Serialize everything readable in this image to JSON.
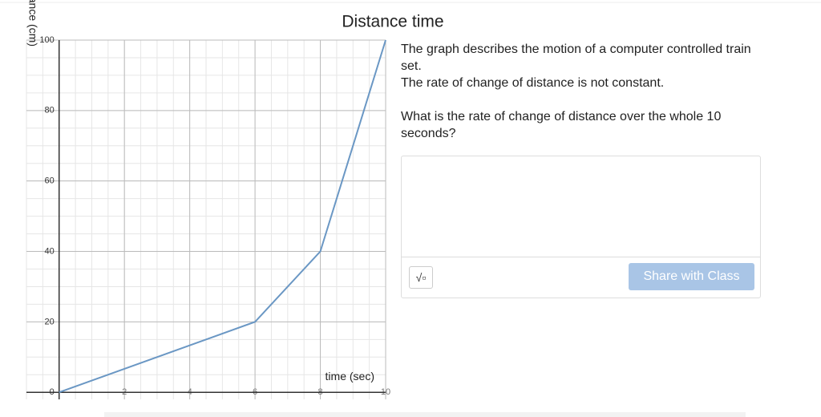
{
  "chart_data": {
    "type": "line",
    "title": "Distance time",
    "x_label": "time (sec)",
    "y_label": "distance (cm)",
    "x": [
      0,
      6,
      8,
      10
    ],
    "values": [
      0,
      20,
      40,
      100
    ],
    "color": "#6a97c4",
    "xlim": [
      -1,
      10
    ],
    "ylim": [
      -2,
      100
    ],
    "xticks": [
      2,
      4,
      6,
      8,
      10
    ],
    "yticks": [
      0,
      20,
      40,
      60,
      80,
      100
    ],
    "grid": true
  },
  "prompt": [
    "The graph describes the motion of a computer controlled train set.",
    "The rate of change of distance is not constant.",
    "What is the rate of change of distance over the whole 10 seconds?"
  ],
  "button": "Share with Class"
}
